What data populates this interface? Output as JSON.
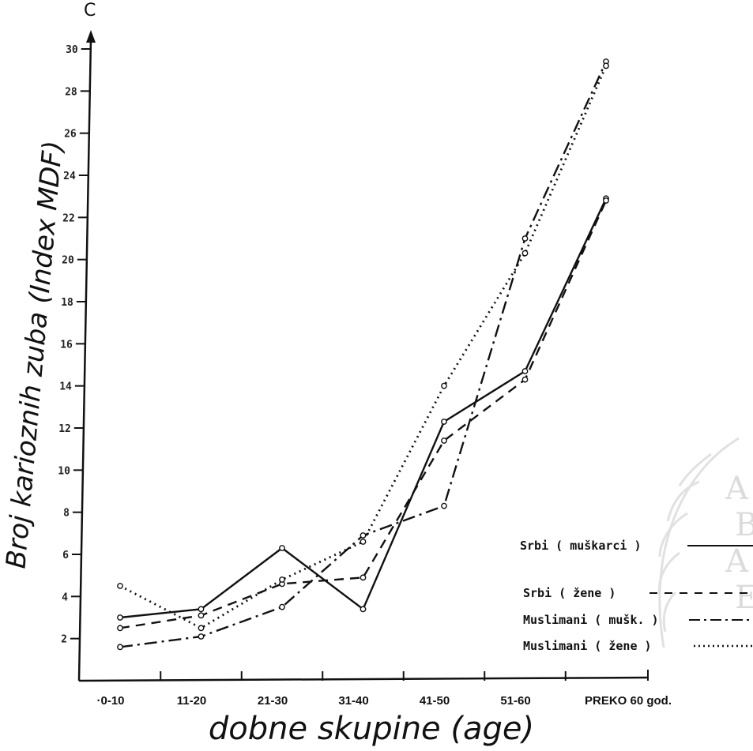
{
  "chart_data": {
    "type": "line",
    "xlabel": "dobne skupine (age)",
    "ylabel": "Broj karioznih zuba (Index MDF)",
    "y_axis_letter": "C",
    "categories": [
      "0-10",
      "11-20",
      "21-30",
      "31-40",
      "41-50",
      "51-60",
      "PREKO 60 god."
    ],
    "category_labels": [
      "·0-10",
      "11-20",
      "21-30",
      "31-40",
      "41-50",
      "51-60",
      "PREKO 60 god."
    ],
    "ylim": [
      0,
      30
    ],
    "y_ticks": [
      2,
      4,
      6,
      8,
      10,
      12,
      14,
      16,
      18,
      20,
      22,
      24,
      26,
      28,
      30
    ],
    "y_tick_labels": [
      "2",
      "4",
      "6",
      "8",
      "10",
      "12",
      "14",
      "16",
      "18",
      "20",
      "22",
      "24",
      "26",
      "28",
      "30"
    ],
    "series": [
      {
        "name": "Srbi ( muškarci )",
        "values": [
          3.0,
          3.4,
          6.3,
          3.4,
          12.3,
          14.7,
          22.9
        ],
        "color": "#111111",
        "dash": "solid"
      },
      {
        "name": "Srbi ( žene )",
        "values": [
          2.5,
          3.1,
          4.6,
          4.9,
          11.4,
          14.3,
          22.8
        ],
        "color": "#111111",
        "dash": "dashed"
      },
      {
        "name": "Muslimani ( mušk. )",
        "values": [
          1.6,
          2.1,
          3.5,
          6.9,
          8.3,
          21.0,
          29.4
        ],
        "color": "#111111",
        "dash": "dashdot"
      },
      {
        "name": "Muslimani ( žene )",
        "values": [
          4.5,
          2.5,
          4.8,
          6.6,
          14.0,
          20.3,
          29.2
        ],
        "color": "#111111",
        "dash": "dotted"
      }
    ],
    "legend_placement": "bottom-right",
    "grid": false
  },
  "watermark": [
    "A",
    "B",
    "A",
    "E"
  ]
}
